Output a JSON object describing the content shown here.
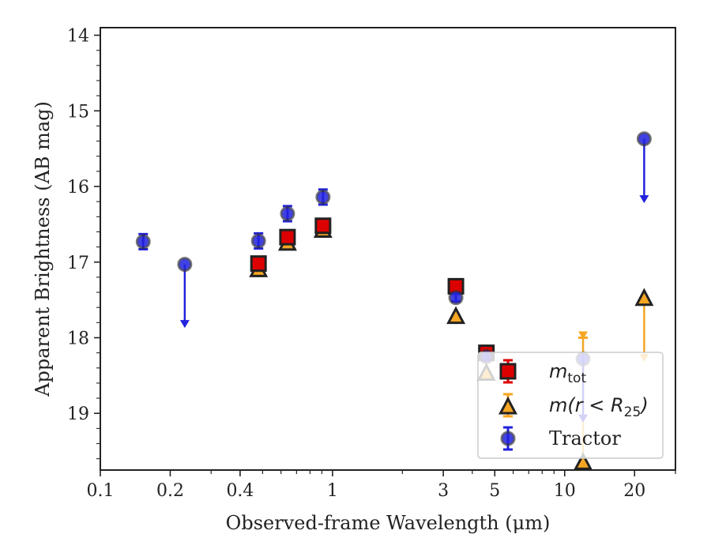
{
  "chart_data": {
    "type": "scatter",
    "title": "",
    "xlabel": "Observed-frame Wavelength (μm)",
    "ylabel": "Apparent Brightness (AB mag)",
    "xscale": "log",
    "xlim": [
      0.1,
      30
    ],
    "ylim": [
      19.75,
      13.9
    ],
    "y_inverted": true,
    "x_ticks": [
      {
        "value": 0.1,
        "label": "0.1"
      },
      {
        "value": 0.2,
        "label": "0.2"
      },
      {
        "value": 0.4,
        "label": "0.4"
      },
      {
        "value": 1,
        "label": "1"
      },
      {
        "value": 3,
        "label": "3"
      },
      {
        "value": 5,
        "label": "5"
      },
      {
        "value": 10,
        "label": "10"
      },
      {
        "value": 20,
        "label": "20"
      }
    ],
    "y_ticks": [
      {
        "value": 14,
        "label": "14"
      },
      {
        "value": 15,
        "label": "15"
      },
      {
        "value": 16,
        "label": "16"
      },
      {
        "value": 17,
        "label": "17"
      },
      {
        "value": 18,
        "label": "18"
      },
      {
        "value": 19,
        "label": "19"
      }
    ],
    "grid": false,
    "legend_position": "lower-right",
    "series": [
      {
        "name": "m_tot",
        "label_base": "m",
        "label_sub": "tot",
        "marker": "square",
        "color": "#dd0000",
        "points": [
          {
            "x": 0.48,
            "y": 17.02,
            "err": 0.08
          },
          {
            "x": 0.64,
            "y": 16.67,
            "err": 0.08
          },
          {
            "x": 0.91,
            "y": 16.52,
            "err": 0.08
          },
          {
            "x": 3.4,
            "y": 17.32,
            "err": 0.05
          },
          {
            "x": 4.6,
            "y": 18.2,
            "err": 0.05
          }
        ]
      },
      {
        "name": "m(r < R_25)",
        "label_base": "m",
        "label_mid": "(r < R",
        "label_sub": "25",
        "label_end": ")",
        "marker": "triangle",
        "color": "#f5a623",
        "points": [
          {
            "x": 0.48,
            "y": 17.1
          },
          {
            "x": 0.64,
            "y": 16.75
          },
          {
            "x": 0.91,
            "y": 16.58
          },
          {
            "x": 3.4,
            "y": 17.72
          },
          {
            "x": 4.6,
            "y": 18.47
          },
          {
            "x": 12.0,
            "y": 19.65,
            "upper_limit": true,
            "arrow_to": 18.0
          },
          {
            "x": 22.0,
            "y": 17.48,
            "upper_limit": true,
            "arrow_to": 18.3
          }
        ]
      },
      {
        "name": "Tractor",
        "marker": "circle",
        "color": "#2222dd",
        "points": [
          {
            "x": 0.153,
            "y": 16.73,
            "err": 0.1
          },
          {
            "x": 0.231,
            "y": 17.03,
            "upper_limit": true,
            "arrow_to": 17.85
          },
          {
            "x": 0.48,
            "y": 16.72,
            "err": 0.1
          },
          {
            "x": 0.64,
            "y": 16.36,
            "err": 0.1
          },
          {
            "x": 0.91,
            "y": 16.14,
            "err": 0.1
          },
          {
            "x": 3.4,
            "y": 17.47,
            "err": 0.05
          },
          {
            "x": 4.6,
            "y": 18.25,
            "err": 0.05
          },
          {
            "x": 12.0,
            "y": 18.28,
            "upper_limit": true,
            "arrow_to": 19.1
          },
          {
            "x": 22.0,
            "y": 15.37,
            "upper_limit": true,
            "arrow_to": 16.2
          }
        ]
      }
    ]
  }
}
